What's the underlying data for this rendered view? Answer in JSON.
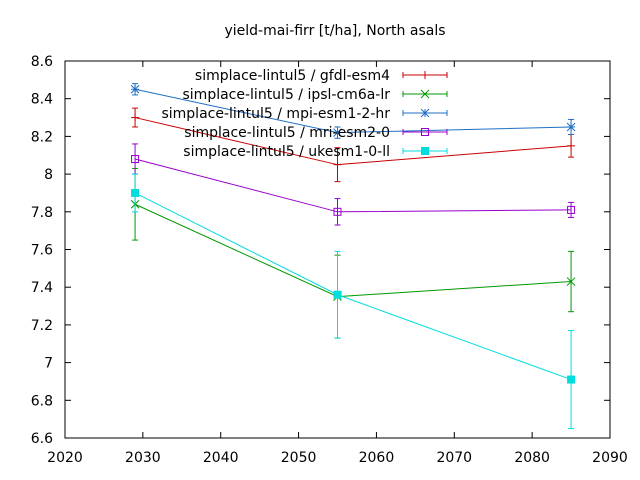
{
  "chart_data": {
    "type": "line",
    "title": "yield-mai-firr [t/ha], North asals",
    "xlabel": "",
    "ylabel": "",
    "xlim": [
      2020,
      2090
    ],
    "ylim": [
      6.6,
      8.6
    ],
    "xticks": [
      2020,
      2030,
      2040,
      2050,
      2060,
      2070,
      2080,
      2090
    ],
    "yticks": [
      6.6,
      6.8,
      7,
      7.2,
      7.4,
      7.6,
      7.8,
      8,
      8.2,
      8.4,
      8.6
    ],
    "grid": false,
    "legend_position": "top-right",
    "x": [
      2029,
      2055,
      2085
    ],
    "series": [
      {
        "name": "simplace-lintul5 / gfdl-esm4",
        "color": "#cc0000",
        "marker": "plus",
        "values": [
          8.3,
          8.05,
          8.15
        ],
        "errors": [
          0.05,
          0.09,
          0.06
        ]
      },
      {
        "name": "simplace-lintul5 / ipsl-cm6a-lr",
        "color": "#009900",
        "marker": "cross",
        "values": [
          7.84,
          7.35,
          7.43
        ],
        "errors": [
          0.19,
          0.22,
          0.16
        ]
      },
      {
        "name": "simplace-lintul5 / mpi-esm1-2-hr",
        "color": "#1f6fc4",
        "marker": "star",
        "values": [
          8.45,
          8.22,
          8.25
        ],
        "errors": [
          0.03,
          0.03,
          0.04
        ]
      },
      {
        "name": "simplace-lintul5 / mri-esm2-0",
        "color": "#9900cc",
        "marker": "square-open",
        "values": [
          8.08,
          7.8,
          7.81
        ],
        "errors": [
          0.08,
          0.07,
          0.04
        ]
      },
      {
        "name": "simplace-lintul5 / ukesm1-0-ll",
        "color": "#00dddd",
        "marker": "square-filled",
        "values": [
          7.9,
          7.36,
          6.91
        ],
        "errors": [
          0.1,
          0.23,
          0.26
        ]
      }
    ]
  }
}
